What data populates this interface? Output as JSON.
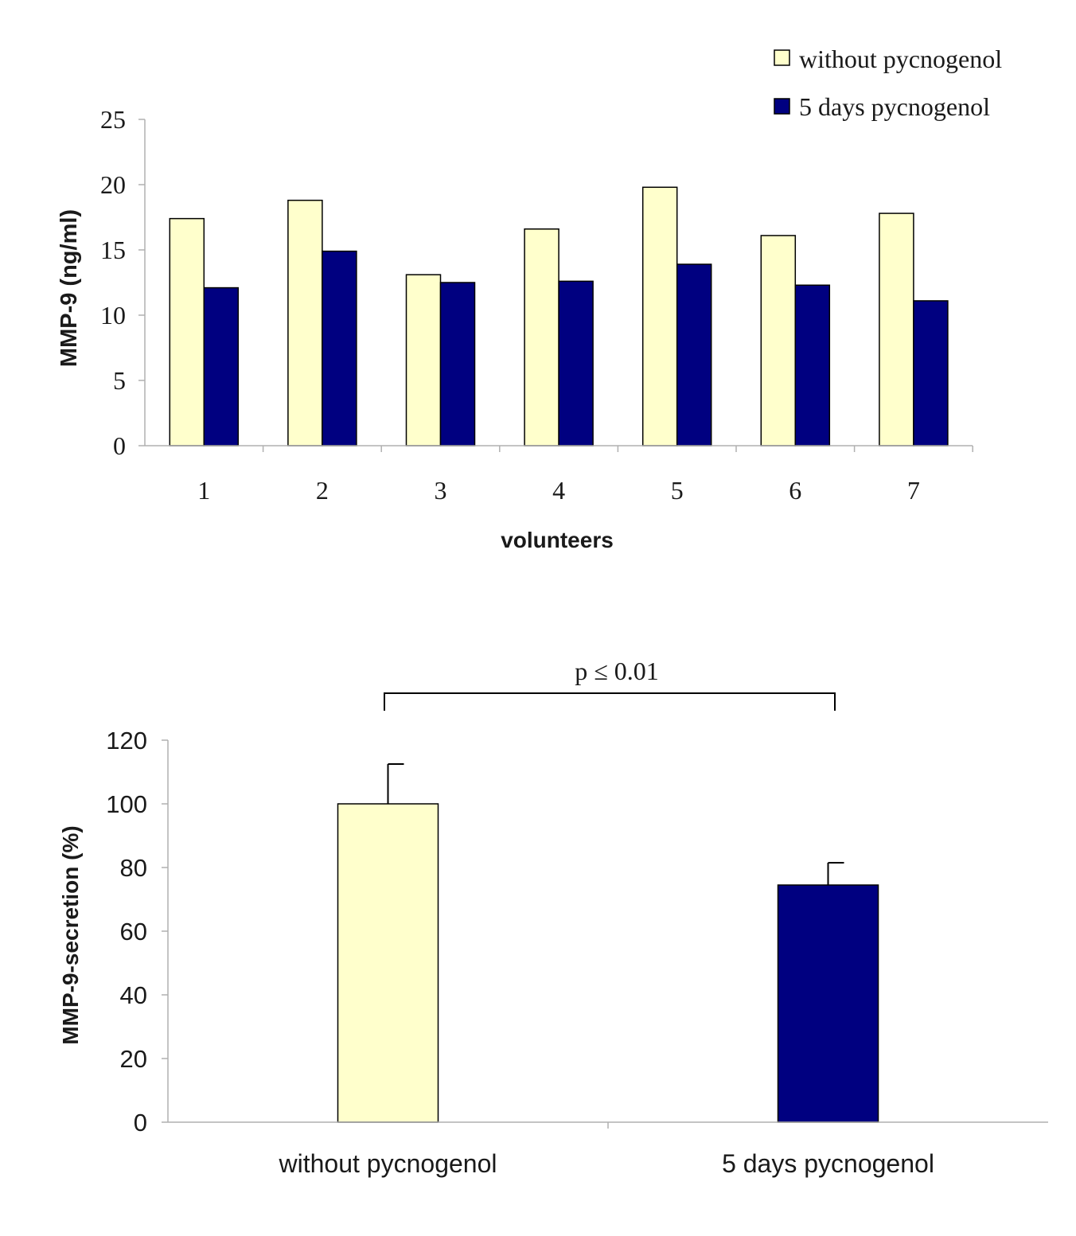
{
  "colors": {
    "without_pycnogenol": "#FFFFCC",
    "five_days_pycnogenol": "#000080",
    "axis": "#B0B0B0",
    "outline": "#000000"
  },
  "chart_data": [
    {
      "type": "bar",
      "title": "",
      "xlabel": "volunteers",
      "ylabel": "MMP-9 (ng/ml)",
      "categories": [
        "1",
        "2",
        "3",
        "4",
        "5",
        "6",
        "7"
      ],
      "ylim": [
        0,
        25
      ],
      "yticks": [
        "0",
        "5",
        "10",
        "15",
        "20",
        "25"
      ],
      "legend_position": "top-right",
      "grid": false,
      "series": [
        {
          "name": "without pycnogenol",
          "values": [
            17.4,
            18.8,
            13.1,
            16.6,
            19.8,
            16.1,
            17.8
          ]
        },
        {
          "name": "5 days pycnogenol",
          "values": [
            12.1,
            14.9,
            12.5,
            12.6,
            13.9,
            12.3,
            11.1
          ]
        }
      ]
    },
    {
      "type": "bar",
      "title": "",
      "xlabel": "",
      "ylabel": "MMP-9-secretion (%)",
      "categories": [
        "without pycnogenol",
        "5 days pycnogenol"
      ],
      "ylim": [
        0,
        120
      ],
      "yticks": [
        "0",
        "20",
        "40",
        "60",
        "80",
        "100",
        "120"
      ],
      "grid": false,
      "values": [
        100,
        74.5
      ],
      "error_upper": [
        112.5,
        81.5
      ],
      "annotation": "p ≤ 0.01"
    }
  ]
}
